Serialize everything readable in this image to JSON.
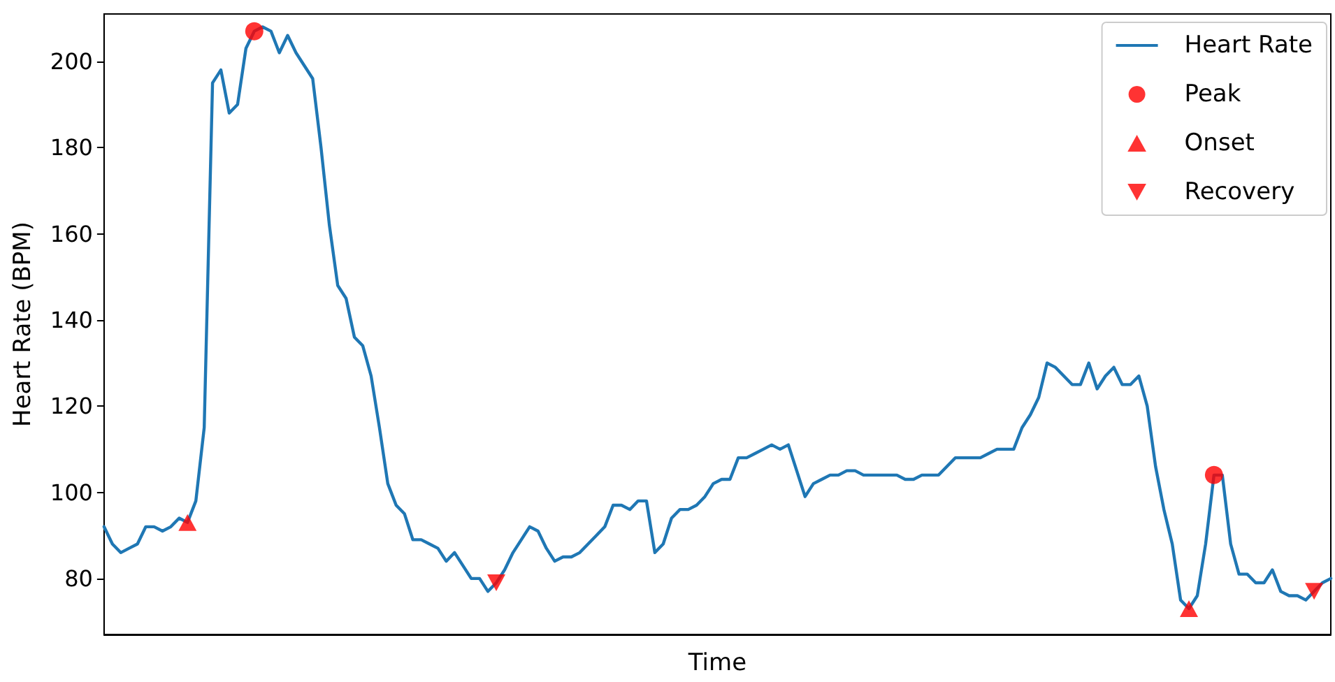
{
  "chart_data": {
    "type": "line",
    "xlabel": "Time",
    "ylabel": "Heart Rate (BPM)",
    "categories": [
      null,
      null,
      null,
      null,
      null,
      null,
      null,
      null,
      null,
      null,
      null,
      null,
      null,
      null,
      null,
      null,
      null,
      null,
      null,
      null,
      null,
      null,
      null,
      null,
      null,
      null,
      null,
      null,
      null,
      null,
      null,
      null,
      null,
      null,
      null,
      null,
      null,
      null,
      null,
      null,
      null,
      null,
      null,
      null,
      null,
      null,
      null,
      null,
      null,
      null,
      null,
      null,
      null,
      null,
      null,
      null,
      null,
      null,
      null,
      null,
      null,
      null,
      null,
      null,
      null,
      null,
      null,
      null,
      null,
      null,
      null,
      null,
      null,
      null,
      null,
      null,
      null,
      null,
      null,
      null,
      null,
      null,
      null,
      null,
      null,
      null,
      null,
      null,
      null,
      null,
      null,
      null,
      null,
      null,
      null,
      null,
      null,
      null,
      null,
      null,
      null,
      null,
      null,
      null,
      null,
      null,
      null,
      null,
      null,
      null,
      null,
      null,
      null,
      null,
      null,
      null,
      null,
      null,
      null,
      null,
      null,
      null,
      null,
      null,
      null,
      null,
      null,
      null,
      null,
      null,
      null,
      null,
      null,
      null,
      null,
      null,
      null,
      null,
      null,
      null,
      null,
      null,
      null,
      null,
      null,
      null,
      null,
      null
    ],
    "series": [
      {
        "name": "Heart Rate",
        "type": "line",
        "color": "#1f77b4",
        "marker": "none",
        "values": [
          92,
          88,
          86,
          87,
          88,
          92,
          92,
          91,
          92,
          94,
          93,
          98,
          115,
          195,
          198,
          188,
          190,
          203,
          207,
          208,
          207,
          202,
          206,
          202,
          199,
          196,
          180,
          162,
          148,
          145,
          136,
          134,
          127,
          115,
          102,
          97,
          95,
          89,
          89,
          88,
          87,
          84,
          86,
          83,
          80,
          80,
          77,
          79,
          82,
          86,
          89,
          92,
          91,
          87,
          84,
          85,
          85,
          86,
          88,
          90,
          92,
          97,
          97,
          96,
          98,
          98,
          86,
          88,
          94,
          96,
          96,
          97,
          99,
          102,
          103,
          103,
          108,
          108,
          109,
          110,
          111,
          110,
          111,
          105,
          99,
          102,
          103,
          104,
          104,
          105,
          105,
          104,
          104,
          104,
          104,
          104,
          103,
          103,
          104,
          104,
          104,
          106,
          108,
          108,
          108,
          108,
          109,
          110,
          110,
          110,
          115,
          118,
          122,
          130,
          129,
          127,
          125,
          125,
          130,
          124,
          127,
          129,
          125,
          125,
          127,
          120,
          106,
          96,
          88,
          75,
          73,
          76,
          88,
          104,
          104,
          88,
          81,
          81,
          79,
          79,
          82,
          77,
          76,
          76,
          75,
          77,
          79,
          80
        ]
      },
      {
        "name": "Peak",
        "type": "scatter",
        "color": "#ff0000",
        "marker": "circle",
        "values": [
          null,
          null,
          null,
          null,
          null,
          null,
          null,
          null,
          null,
          null,
          null,
          null,
          null,
          null,
          null,
          null,
          null,
          null,
          207,
          null,
          null,
          null,
          null,
          null,
          null,
          null,
          null,
          null,
          null,
          null,
          null,
          null,
          null,
          null,
          null,
          null,
          null,
          null,
          null,
          null,
          null,
          null,
          null,
          null,
          null,
          null,
          null,
          null,
          null,
          null,
          null,
          null,
          null,
          null,
          null,
          null,
          null,
          null,
          null,
          null,
          null,
          null,
          null,
          null,
          null,
          null,
          null,
          null,
          null,
          null,
          null,
          null,
          null,
          null,
          null,
          null,
          null,
          null,
          null,
          null,
          null,
          null,
          null,
          null,
          null,
          null,
          null,
          null,
          null,
          null,
          null,
          null,
          null,
          null,
          null,
          null,
          null,
          null,
          null,
          null,
          null,
          null,
          null,
          null,
          null,
          null,
          null,
          null,
          null,
          null,
          null,
          null,
          null,
          null,
          null,
          null,
          null,
          null,
          null,
          null,
          null,
          null,
          null,
          null,
          null,
          null,
          null,
          null,
          null,
          null,
          null,
          null,
          null,
          104,
          null,
          null,
          null,
          null,
          null,
          null,
          null,
          null,
          null,
          null,
          null,
          null,
          null,
          null
        ]
      },
      {
        "name": "Onset",
        "type": "scatter",
        "color": "#ff0000",
        "marker": "triangle",
        "values": [
          null,
          null,
          null,
          null,
          null,
          null,
          null,
          null,
          null,
          null,
          93,
          null,
          null,
          null,
          null,
          null,
          null,
          null,
          null,
          null,
          null,
          null,
          null,
          null,
          null,
          null,
          null,
          null,
          null,
          null,
          null,
          null,
          null,
          null,
          null,
          null,
          null,
          null,
          null,
          null,
          null,
          null,
          null,
          null,
          null,
          null,
          null,
          null,
          null,
          null,
          null,
          null,
          null,
          null,
          null,
          null,
          null,
          null,
          null,
          null,
          null,
          null,
          null,
          null,
          null,
          null,
          null,
          null,
          null,
          null,
          null,
          null,
          null,
          null,
          null,
          null,
          null,
          null,
          null,
          null,
          null,
          null,
          null,
          null,
          null,
          null,
          null,
          null,
          null,
          null,
          null,
          null,
          null,
          null,
          null,
          null,
          null,
          null,
          null,
          null,
          null,
          null,
          null,
          null,
          null,
          null,
          null,
          null,
          null,
          null,
          null,
          null,
          null,
          null,
          null,
          null,
          null,
          null,
          null,
          null,
          null,
          null,
          null,
          null,
          null,
          null,
          null,
          null,
          null,
          null,
          73,
          null,
          null,
          null,
          null,
          null,
          null,
          null,
          null,
          null,
          null,
          null,
          null,
          null,
          null,
          null,
          null,
          null
        ]
      },
      {
        "name": "Recovery",
        "type": "scatter",
        "color": "#ff0000",
        "marker": "triangle-down",
        "values": [
          null,
          null,
          null,
          null,
          null,
          null,
          null,
          null,
          null,
          null,
          null,
          null,
          null,
          null,
          null,
          null,
          null,
          null,
          null,
          null,
          null,
          null,
          null,
          null,
          null,
          null,
          null,
          null,
          null,
          null,
          null,
          null,
          null,
          null,
          null,
          null,
          null,
          null,
          null,
          null,
          null,
          null,
          null,
          null,
          null,
          null,
          null,
          79,
          null,
          null,
          null,
          null,
          null,
          null,
          null,
          null,
          null,
          null,
          null,
          null,
          null,
          null,
          null,
          null,
          null,
          null,
          null,
          null,
          null,
          null,
          null,
          null,
          null,
          null,
          null,
          null,
          null,
          null,
          null,
          null,
          null,
          null,
          null,
          null,
          null,
          null,
          null,
          null,
          null,
          null,
          null,
          null,
          null,
          null,
          null,
          null,
          null,
          null,
          null,
          null,
          null,
          null,
          null,
          null,
          null,
          null,
          null,
          null,
          null,
          null,
          null,
          null,
          null,
          null,
          null,
          null,
          null,
          null,
          null,
          null,
          null,
          null,
          null,
          null,
          null,
          null,
          null,
          null,
          null,
          null,
          null,
          null,
          null,
          null,
          null,
          null,
          null,
          null,
          null,
          null,
          null,
          null,
          null,
          null,
          null,
          77,
          null,
          null
        ]
      }
    ],
    "ylim": [
      67,
      211
    ],
    "yticks": [
      80,
      100,
      120,
      140,
      160,
      180,
      200
    ],
    "grid": false,
    "legend": "top right",
    "tick_labels": "y"
  }
}
